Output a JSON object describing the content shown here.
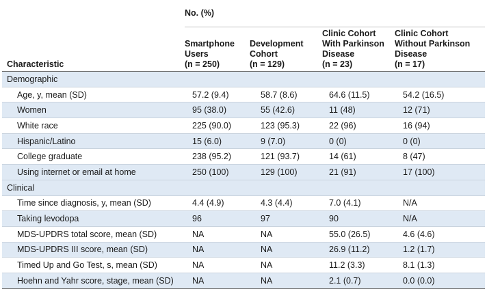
{
  "header": {
    "group_label": "No. (%)",
    "characteristic_label": "Characteristic",
    "columns": [
      {
        "lines": [
          "Smartphone",
          "Users",
          "(n = 250)"
        ]
      },
      {
        "lines": [
          "Development",
          "Cohort",
          "(n = 129)"
        ]
      },
      {
        "lines": [
          "Clinic Cohort",
          "With Parkinson",
          "Disease",
          "(n = 23)"
        ]
      },
      {
        "lines": [
          "Clinic Cohort",
          "Without Parkinson",
          "Disease",
          "(n = 17)"
        ]
      }
    ]
  },
  "sections": [
    {
      "title": "Demographic",
      "rows": [
        {
          "label": "Age, y, mean (SD)",
          "values": [
            "57.2 (9.4)",
            "58.7 (8.6)",
            "64.6 (11.5)",
            "54.2 (16.5)"
          ]
        },
        {
          "label": "Women",
          "values": [
            "95 (38.0)",
            "55 (42.6)",
            "11 (48)",
            "12 (71)"
          ]
        },
        {
          "label": "White race",
          "values": [
            "225 (90.0)",
            "123 (95.3)",
            "22 (96)",
            "16 (94)"
          ]
        },
        {
          "label": "Hispanic/Latino",
          "values": [
            "15 (6.0)",
            "9 (7.0)",
            "0 (0)",
            "0 (0)"
          ]
        },
        {
          "label": "College graduate",
          "values": [
            "238 (95.2)",
            "121 (93.7)",
            "14 (61)",
            "8 (47)"
          ]
        },
        {
          "label": "Using internet or email at home",
          "values": [
            "250 (100)",
            "129 (100)",
            "21 (91)",
            "17 (100)"
          ]
        }
      ]
    },
    {
      "title": "Clinical",
      "rows": [
        {
          "label": "Time since diagnosis, y, mean (SD)",
          "values": [
            "4.4 (4.9)",
            "4.3 (4.4)",
            "7.0 (4.1)",
            "N/A"
          ]
        },
        {
          "label": "Taking levodopa",
          "values": [
            "96",
            "97",
            "90",
            "N/A"
          ]
        },
        {
          "label": "MDS-UPDRS total score, mean (SD)",
          "values": [
            "NA",
            "NA",
            "55.0 (26.5)",
            "4.6 (4.6)"
          ]
        },
        {
          "label": "MDS-UPDRS III score, mean (SD)",
          "values": [
            "NA",
            "NA",
            "26.9 (11.2)",
            "1.2 (1.7)"
          ]
        },
        {
          "label": "Timed Up and Go Test, s, mean (SD)",
          "values": [
            "NA",
            "NA",
            "11.2 (3.3)",
            "8.1 (1.3)"
          ]
        },
        {
          "label": "Hoehn and Yahr score, stage, mean (SD)",
          "values": [
            "NA",
            "NA",
            "2.1 (0.7)",
            "0.0 (0.0)"
          ]
        }
      ]
    }
  ],
  "colors": {
    "row_shade": "#dfe9f4",
    "rule": "#6e6e6e"
  }
}
